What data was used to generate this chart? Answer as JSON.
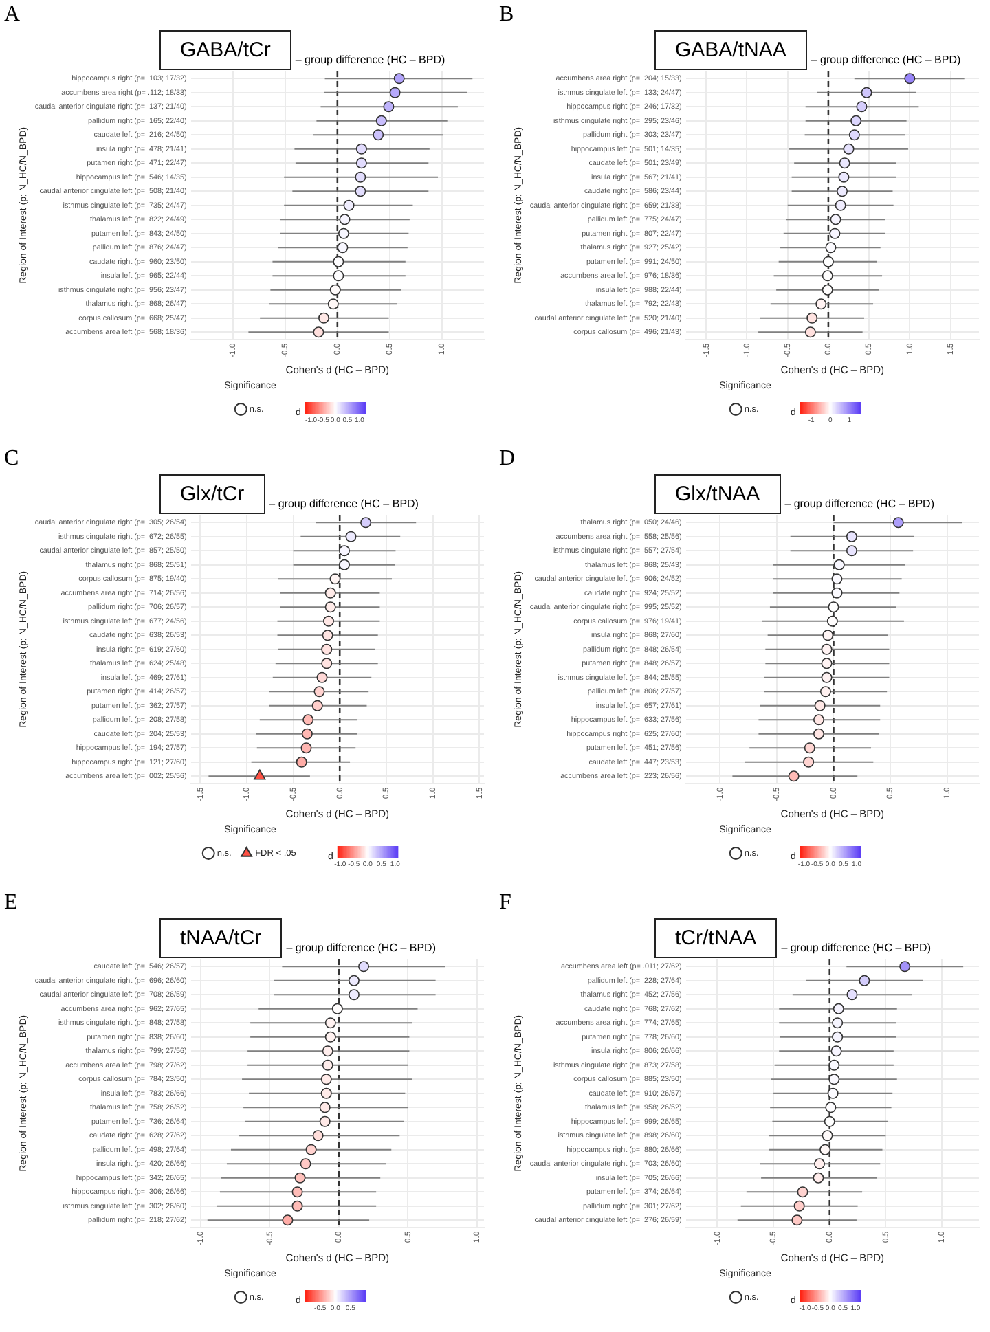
{
  "chart_data": [
    {
      "type": "scatter",
      "title": "GABA/tCr",
      "subtitle": "– group difference (HC – BPD)",
      "xlabel": "Cohen's d (HC – BPD)",
      "ylabel": "Region of Interest (p; N_HC/N_BPD)",
      "annotations": [
        "A"
      ],
      "orientation": "horizontal",
      "grid": true,
      "legend": "bottom",
      "legend_title": "Significance",
      "clabel": "d",
      "clim": [
        -1.25,
        1.25
      ],
      "cticks": [
        {
          "value": -1,
          "label": "-1.0"
        },
        {
          "value": -0.5,
          "label": "-0.5"
        },
        {
          "value": 0,
          "label": "0.0"
        },
        {
          "value": 0.5,
          "label": "0.5"
        },
        {
          "value": 1,
          "label": "1.0"
        }
      ],
      "categories": [
        "hippocampus right (p= .103; 17/32)",
        "accumbens area right (p= .112; 18/33)",
        "caudal anterior cingulate right (p= .137; 21/40)",
        "pallidum right (p= .165; 22/40)",
        "caudate left (p= .216; 24/50)",
        "insula right (p= .478; 21/41)",
        "putamen right (p= .471; 22/47)",
        "hippocampus left (p= .546; 14/35)",
        "caudal anterior cingulate left (p= .508; 21/40)",
        "isthmus cingulate left (p= .735; 24/47)",
        "thalamus left (p= .822; 24/49)",
        "putamen left (p= .843; 24/50)",
        "pallidum left (p= .876; 24/47)",
        "caudate right (p= .960; 23/50)",
        "insula left (p= .965; 22/44)",
        "isthmus cingulate right (p= .956; 23/47)",
        "thalamus right (p= .868; 26/47)",
        "corpus callosum (p= .668; 25/47)",
        "accumbens area left (p= .568; 18/36)"
      ],
      "series": [
        {
          "name": "n.s.",
          "marker": "circle",
          "values": [
            0.59,
            0.55,
            0.49,
            0.42,
            0.39,
            0.23,
            0.23,
            0.22,
            0.22,
            0.11,
            0.07,
            0.06,
            0.05,
            0.01,
            0.01,
            -0.02,
            -0.04,
            -0.13,
            -0.18
          ],
          "cvalues": [
            0.59,
            0.55,
            0.49,
            0.42,
            0.39,
            0.23,
            0.23,
            0.22,
            0.22,
            0.11,
            0.07,
            0.06,
            0.05,
            0.01,
            0.01,
            -0.02,
            -0.04,
            -0.13,
            -0.18
          ],
          "errors": [
            [
              -0.12,
              1.29
            ],
            [
              -0.13,
              1.24
            ],
            [
              -0.16,
              1.15
            ],
            [
              -0.2,
              1.05
            ],
            [
              -0.23,
              1.01
            ],
            [
              -0.41,
              0.88
            ],
            [
              -0.4,
              0.87
            ],
            [
              -0.51,
              0.96
            ],
            [
              -0.43,
              0.87
            ],
            [
              -0.51,
              0.72
            ],
            [
              -0.55,
              0.69
            ],
            [
              -0.55,
              0.68
            ],
            [
              -0.57,
              0.67
            ],
            [
              -0.62,
              0.65
            ],
            [
              -0.62,
              0.65
            ],
            [
              -0.64,
              0.61
            ],
            [
              -0.65,
              0.57
            ],
            [
              -0.74,
              0.49
            ],
            [
              -0.85,
              0.49
            ]
          ]
        }
      ],
      "xlim": [
        -1.4,
        1.4
      ],
      "xticks": [
        {
          "value": -1,
          "label": "-1.0"
        },
        {
          "value": -0.5,
          "label": "-0.5"
        },
        {
          "value": 0,
          "label": "0.0"
        },
        {
          "value": 0.5,
          "label": "0.5"
        },
        {
          "value": 1,
          "label": "1.0"
        }
      ],
      "ref_lines": [
        {
          "axis": "x",
          "value": 0,
          "line_style": "dashed"
        }
      ]
    },
    {
      "type": "scatter",
      "title": "GABA/tNAA",
      "subtitle": "– group difference (HC – BPD)",
      "xlabel": "Cohen's d (HC – BPD)",
      "ylabel": "Region of Interest (p; N_HC/N_BPD)",
      "annotations": [
        "B"
      ],
      "orientation": "horizontal",
      "grid": true,
      "legend": "bottom",
      "legend_title": "Significance",
      "clabel": "d",
      "clim": [
        -1.6,
        1.6
      ],
      "cticks": [
        -1,
        0,
        1
      ],
      "categories": [
        "accumbens area right (p= .204; 15/33)",
        "isthmus cingulate left (p= .133; 24/47)",
        "hippocampus right (p= .246; 17/32)",
        "isthmus cingulate right (p= .295; 23/46)",
        "pallidum right (p= .303; 23/47)",
        "hippocampus left (p= .501; 14/35)",
        "caudate left (p= .501; 23/49)",
        "insula right (p= .567; 21/41)",
        "caudate right (p= .586; 23/44)",
        "caudal anterior cingulate right (p= .659; 21/38)",
        "pallidum left (p= .775; 24/47)",
        "putamen right (p= .807; 22/47)",
        "thalamus right (p= .927; 25/42)",
        "putamen left (p= .991; 24/50)",
        "accumbens area left (p= .976; 18/36)",
        "insula left (p= .988; 22/44)",
        "thalamus left (p= .792; 22/43)",
        "caudal anterior cingulate left (p= .520; 21/40)",
        "corpus callosum (p= .496; 21/43)"
      ],
      "series": [
        {
          "name": "n.s.",
          "marker": "circle",
          "values": [
            1.0,
            0.47,
            0.41,
            0.34,
            0.32,
            0.25,
            0.2,
            0.19,
            0.17,
            0.15,
            0.09,
            0.08,
            0.03,
            0.0,
            -0.01,
            -0.01,
            -0.09,
            -0.2,
            -0.22
          ],
          "cvalues": [
            1.0,
            0.47,
            0.41,
            0.34,
            0.32,
            0.25,
            0.2,
            0.19,
            0.17,
            0.15,
            0.09,
            0.08,
            0.03,
            0.0,
            -0.01,
            -0.01,
            -0.09,
            -0.2,
            -0.22
          ],
          "errors": [
            [
              0.32,
              1.67
            ],
            [
              -0.14,
              1.08
            ],
            [
              -0.28,
              1.11
            ],
            [
              -0.28,
              0.96
            ],
            [
              -0.29,
              0.94
            ],
            [
              -0.48,
              0.98
            ],
            [
              -0.42,
              0.83
            ],
            [
              -0.45,
              0.83
            ],
            [
              -0.45,
              0.79
            ],
            [
              -0.5,
              0.8
            ],
            [
              -0.52,
              0.7
            ],
            [
              -0.55,
              0.7
            ],
            [
              -0.59,
              0.64
            ],
            [
              -0.61,
              0.6
            ],
            [
              -0.67,
              0.66
            ],
            [
              -0.64,
              0.62
            ],
            [
              -0.71,
              0.55
            ],
            [
              -0.84,
              0.44
            ],
            [
              -0.86,
              0.42
            ]
          ]
        }
      ],
      "xlim": [
        -1.75,
        1.85
      ],
      "xticks": [
        {
          "value": -1.5,
          "label": "-1.5"
        },
        {
          "value": -1,
          "label": "-1.0"
        },
        {
          "value": -0.5,
          "label": "-0.5"
        },
        {
          "value": 0,
          "label": "0.0"
        },
        {
          "value": 0.5,
          "label": "0.5"
        },
        {
          "value": 1,
          "label": "1.0"
        },
        {
          "value": 1.5,
          "label": "1.5"
        }
      ],
      "ref_lines": [
        {
          "axis": "x",
          "value": 0,
          "line_style": "dashed"
        }
      ]
    },
    {
      "type": "scatter",
      "title": "Glx/tCr",
      "subtitle": "– group difference (HC – BPD)",
      "xlabel": "Cohen's d (HC – BPD)",
      "ylabel": "Region of Interest (p; N_HC/N_BPD)",
      "annotations": [
        "C"
      ],
      "orientation": "horizontal",
      "grid": true,
      "legend": "bottom",
      "legend_title": "Significance",
      "clabel": "d",
      "clim": [
        -1.1,
        1.1
      ],
      "cticks": [
        {
          "value": -1,
          "label": "-1.0"
        },
        {
          "value": -0.5,
          "label": "-0.5"
        },
        {
          "value": 0,
          "label": "0.0"
        },
        {
          "value": 0.5,
          "label": "0.5"
        },
        {
          "value": 1,
          "label": "1.0"
        }
      ],
      "categories": [
        "caudal anterior cingulate right (p= .305; 26/54)",
        "isthmus cingulate right (p= .672; 26/55)",
        "caudal anterior cingulate left (p= .857; 25/50)",
        "thalamus right (p= .868; 25/51)",
        "corpus callosum (p= .875; 19/40)",
        "accumbens area right (p= .714; 26/56)",
        "pallidum right (p= .706; 26/57)",
        "isthmus cingulate left (p= .677; 24/56)",
        "caudate right (p= .638; 26/53)",
        "insula right (p= .619; 27/60)",
        "thalamus left (p= .624; 25/48)",
        "insula left (p= .469; 27/61)",
        "putamen right (p= .414; 26/57)",
        "putamen left (p= .362; 27/57)",
        "pallidum left (p= .208; 27/58)",
        "caudate left (p= .204; 25/53)",
        "hippocampus left (p= .194; 27/57)",
        "hippocampus right (p= .121; 27/60)",
        "accumbens area left (p= .002; 25/56)"
      ],
      "series": [
        {
          "name": "n.s.",
          "marker": "circle",
          "values": [
            0.28,
            0.12,
            0.05,
            0.05,
            -0.05,
            -0.1,
            -0.1,
            -0.12,
            -0.13,
            -0.14,
            -0.14,
            -0.19,
            -0.22,
            -0.24,
            -0.34,
            -0.35,
            -0.36,
            -0.41,
            null
          ],
          "colors": [
            "#d5cdfc",
            "#edeafe",
            "#f8f6ff",
            "#f8f6ff",
            "#fff5f4",
            "#ffebe9",
            "#ffebe9",
            "#ffe7e5",
            "#ffe5e3",
            "#ffe3e1",
            "#ffe3e1",
            "#ffd8d6",
            "#ffd2cf",
            "#ffcecb",
            "#ffbab5",
            "#ffb8b3",
            "#ffb6b1",
            "#ffaca6",
            null
          ],
          "errors": [
            [
              -0.26,
              0.82
            ],
            [
              -0.42,
              0.65
            ],
            [
              -0.5,
              0.6
            ],
            [
              -0.5,
              0.59
            ],
            [
              -0.66,
              0.56
            ],
            [
              -0.64,
              0.43
            ],
            [
              -0.64,
              0.43
            ],
            [
              -0.67,
              0.43
            ],
            [
              -0.67,
              0.41
            ],
            [
              -0.66,
              0.38
            ],
            [
              -0.69,
              0.41
            ],
            [
              -0.72,
              0.34
            ],
            [
              -0.76,
              0.31
            ],
            [
              -0.76,
              0.29
            ],
            [
              -0.86,
              0.19
            ],
            [
              -0.9,
              0.19
            ],
            [
              -0.89,
              0.17
            ],
            [
              -0.95,
              0.11
            ],
            null
          ]
        },
        {
          "name": "FDR < .05",
          "marker": "triangle",
          "values": [
            null,
            null,
            null,
            null,
            null,
            null,
            null,
            null,
            null,
            null,
            null,
            null,
            null,
            null,
            null,
            null,
            null,
            null,
            -0.86
          ],
          "colors": [
            null,
            null,
            null,
            null,
            null,
            null,
            null,
            null,
            null,
            null,
            null,
            null,
            null,
            null,
            null,
            null,
            null,
            null,
            "#ff5144"
          ],
          "errors": [
            null,
            null,
            null,
            null,
            null,
            null,
            null,
            null,
            null,
            null,
            null,
            null,
            null,
            null,
            null,
            null,
            null,
            null,
            [
              -1.41,
              -0.32
            ]
          ]
        }
      ],
      "xlim": [
        -1.6,
        1.55
      ],
      "xticks": [
        {
          "value": -1.5,
          "label": "-1.5"
        },
        {
          "value": -1,
          "label": "-1.0"
        },
        {
          "value": -0.5,
          "label": "-0.5"
        },
        {
          "value": 0,
          "label": "0.0"
        },
        {
          "value": 0.5,
          "label": "0.5"
        },
        {
          "value": 1,
          "label": "1.0"
        },
        {
          "value": 1.5,
          "label": "1.5"
        }
      ],
      "ref_lines": [
        {
          "axis": "x",
          "value": 0,
          "line_style": "dashed"
        }
      ]
    },
    {
      "type": "scatter",
      "title": "Glx/tNAA",
      "subtitle": "– group difference (HC – BPD)",
      "xlabel": "Cohen's d (HC – BPD)",
      "ylabel": "Region of Interest (p; N_HC/N_BPD)",
      "annotations": [
        "D"
      ],
      "orientation": "horizontal",
      "grid": true,
      "legend": "bottom",
      "legend_title": "Significance",
      "clabel": "d",
      "clim": [
        -1.15,
        1.15
      ],
      "cticks": [
        {
          "value": -1,
          "label": "-1.0"
        },
        {
          "value": -0.5,
          "label": "-0.5"
        },
        {
          "value": 0,
          "label": "0.0"
        },
        {
          "value": 0.5,
          "label": "0.5"
        },
        {
          "value": 1,
          "label": "1.0"
        }
      ],
      "categories": [
        "thalamus right (p= .050; 24/46)",
        "accumbens area right (p= .558; 25/56)",
        "isthmus cingulate right (p= .557; 27/54)",
        "thalamus left (p= .868; 25/43)",
        "caudal anterior cingulate left (p= .906; 24/52)",
        "caudate right (p= .924; 25/52)",
        "caudal anterior cingulate right (p= .995; 25/52)",
        "corpus callosum (p= .976; 19/41)",
        "insula right (p= .868; 27/60)",
        "pallidum right (p= .848; 26/54)",
        "putamen right (p= .848; 26/57)",
        "isthmus cingulate left (p= .844; 25/55)",
        "pallidum left (p= .806; 27/57)",
        "insula left (p= .657; 27/61)",
        "hippocampus left (p= .633; 27/56)",
        "hippocampus right (p= .625; 27/60)",
        "putamen left (p= .451; 27/56)",
        "caudate left (p= .447; 23/53)",
        "accumbens area left (p= .223; 26/56)"
      ],
      "series": [
        {
          "name": "n.s.",
          "marker": "circle",
          "values": [
            0.57,
            0.16,
            0.16,
            0.05,
            0.03,
            0.03,
            0.0,
            -0.01,
            -0.05,
            -0.06,
            -0.06,
            -0.06,
            -0.07,
            -0.12,
            -0.13,
            -0.13,
            -0.21,
            -0.22,
            -0.35
          ],
          "cvalues": [
            0.57,
            0.16,
            0.16,
            0.05,
            0.03,
            0.03,
            0.0,
            -0.01,
            -0.05,
            -0.06,
            -0.06,
            -0.06,
            -0.07,
            -0.12,
            -0.13,
            -0.13,
            -0.21,
            -0.22,
            -0.35
          ],
          "errors": [
            [
              0.0,
              1.13
            ],
            [
              -0.38,
              0.71
            ],
            [
              -0.38,
              0.7
            ],
            [
              -0.53,
              0.63
            ],
            [
              -0.53,
              0.6
            ],
            [
              -0.53,
              0.58
            ],
            [
              -0.56,
              0.55
            ],
            [
              -0.63,
              0.62
            ],
            [
              -0.58,
              0.48
            ],
            [
              -0.6,
              0.49
            ],
            [
              -0.6,
              0.49
            ],
            [
              -0.61,
              0.49
            ],
            [
              -0.61,
              0.47
            ],
            [
              -0.65,
              0.41
            ],
            [
              -0.66,
              0.41
            ],
            [
              -0.66,
              0.4
            ],
            [
              -0.74,
              0.33
            ],
            [
              -0.78,
              0.35
            ],
            [
              -0.89,
              0.21
            ]
          ]
        }
      ],
      "xlim": [
        -1.3,
        1.28
      ],
      "xticks": [
        {
          "value": -1,
          "label": "-1.0"
        },
        {
          "value": -0.5,
          "label": "-0.5"
        },
        {
          "value": 0,
          "label": "0.0"
        },
        {
          "value": 0.5,
          "label": "0.5"
        },
        {
          "value": 1,
          "label": "1.0"
        }
      ],
      "ref_lines": [
        {
          "axis": "x",
          "value": 0,
          "line_style": "dashed"
        }
      ]
    },
    {
      "type": "scatter",
      "title": "tNAA/tCr",
      "subtitle": "– group difference (HC – BPD)",
      "xlabel": "Cohen's d (HC – BPD)",
      "ylabel": "Region of Interest (p; N_HC/N_BPD)",
      "annotations": [
        "E"
      ],
      "orientation": "horizontal",
      "grid": true,
      "legend": "bottom",
      "legend_title": "Significance",
      "clabel": "d",
      "clim": [
        -1,
        1
      ],
      "cticks": [
        {
          "value": -0.5,
          "label": "-0.5"
        },
        {
          "value": 0,
          "label": "0.0"
        },
        {
          "value": 0.5,
          "label": "0.5"
        }
      ],
      "categories": [
        "caudate left (p= .546; 26/57)",
        "caudal anterior cingulate right (p= .696; 26/60)",
        "caudal anterior cingulate left (p= .708; 26/59)",
        "accumbens area right (p= .962; 27/65)",
        "isthmus cingulate right (p= .848; 27/58)",
        "putamen right (p= .838; 26/60)",
        "thalamus right (p= .799; 27/56)",
        "accumbens area left (p= .798; 27/62)",
        "corpus callosum (p= .784; 23/50)",
        "insula left (p= .783; 26/66)",
        "thalamus left (p= .758; 26/52)",
        "putamen left (p= .736; 26/64)",
        "caudate right (p= .628; 27/62)",
        "pallidum left (p= .498; 27/64)",
        "insula right (p= .420; 26/66)",
        "hippocampus left (p= .342; 26/65)",
        "hippocampus right (p= .306; 26/66)",
        "isthmus cingulate left (p= .302; 26/60)",
        "pallidum right (p= .218; 27/62)"
      ],
      "series": [
        {
          "name": "n.s.",
          "marker": "circle",
          "values": [
            0.18,
            0.11,
            0.11,
            -0.01,
            -0.06,
            -0.06,
            -0.08,
            -0.08,
            -0.09,
            -0.09,
            -0.1,
            -0.1,
            -0.15,
            -0.2,
            -0.24,
            -0.28,
            -0.3,
            -0.3,
            -0.37
          ],
          "cvalues": [
            0.18,
            0.11,
            0.11,
            -0.01,
            -0.06,
            -0.06,
            -0.08,
            -0.08,
            -0.09,
            -0.09,
            -0.1,
            -0.1,
            -0.15,
            -0.2,
            -0.24,
            -0.28,
            -0.3,
            -0.3,
            -0.37
          ],
          "errors": [
            [
              -0.41,
              0.77
            ],
            [
              -0.47,
              0.7
            ],
            [
              -0.47,
              0.7
            ],
            [
              -0.58,
              0.57
            ],
            [
              -0.64,
              0.53
            ],
            [
              -0.64,
              0.51
            ],
            [
              -0.66,
              0.51
            ],
            [
              -0.66,
              0.5
            ],
            [
              -0.7,
              0.53
            ],
            [
              -0.65,
              0.48
            ],
            [
              -0.69,
              0.5
            ],
            [
              -0.68,
              0.47
            ],
            [
              -0.72,
              0.44
            ],
            [
              -0.78,
              0.38
            ],
            [
              -0.81,
              0.34
            ],
            [
              -0.85,
              0.3
            ],
            [
              -0.86,
              0.27
            ],
            [
              -0.88,
              0.27
            ],
            [
              -0.95,
              0.22
            ]
          ]
        }
      ],
      "xlim": [
        -1.07,
        1.05
      ],
      "xticks": [
        {
          "value": -1,
          "label": "-1.0"
        },
        {
          "value": -0.5,
          "label": "-0.5"
        },
        {
          "value": 0,
          "label": "0.0"
        },
        {
          "value": 0.5,
          "label": "0.5"
        },
        {
          "value": 1,
          "label": "1.0"
        }
      ],
      "ref_lines": [
        {
          "axis": "x",
          "value": 0,
          "line_style": "dashed"
        }
      ]
    },
    {
      "type": "scatter",
      "title": "tCr/tNAA",
      "subtitle": "– group difference (HC – BPD)",
      "xlabel": "Cohen's d (HC – BPD)",
      "ylabel": "Region of Interest (p; N_HC/N_BPD)",
      "annotations": [
        "F"
      ],
      "orientation": "horizontal",
      "grid": true,
      "legend": "bottom",
      "legend_title": "Significance",
      "clabel": "d",
      "clim": [
        -1.2,
        1.2
      ],
      "cticks": [
        {
          "value": -1,
          "label": "-1.0"
        },
        {
          "value": -0.5,
          "label": "-0.5"
        },
        {
          "value": 0,
          "label": "0.0"
        },
        {
          "value": 0.5,
          "label": "0.5"
        },
        {
          "value": 1,
          "label": "1.0"
        }
      ],
      "categories": [
        "accumbens area left (p= .011; 27/62)",
        "pallidum left (p= .228; 27/64)",
        "thalamus right (p= .452; 27/56)",
        "caudate right (p= .768; 27/62)",
        "accumbens area right (p= .774; 27/65)",
        "putamen right (p= .778; 26/60)",
        "insula right (p= .806; 26/66)",
        "isthmus cingulate right (p= .873; 27/58)",
        "corpus callosum (p= .885; 23/50)",
        "caudate left (p= .910; 26/57)",
        "thalamus left (p= .958; 26/52)",
        "hippocampus left (p= .999; 26/65)",
        "isthmus cingulate left (p= .898; 26/60)",
        "hippocampus right (p= .880; 26/66)",
        "caudal anterior cingulate right (p= .703; 26/60)",
        "insula left (p= .705; 26/66)",
        "putamen left (p= .374; 26/64)",
        "pallidum right (p= .301; 27/62)",
        "caudal anterior cingulate left (p= .276; 26/59)"
      ],
      "series": [
        {
          "name": "n.s.",
          "marker": "circle",
          "values": [
            0.67,
            0.31,
            0.2,
            0.08,
            0.07,
            0.07,
            0.06,
            0.04,
            0.04,
            0.03,
            0.01,
            0.0,
            -0.02,
            -0.04,
            -0.09,
            -0.1,
            -0.24,
            -0.27,
            -0.29
          ],
          "cvalues": [
            0.67,
            0.31,
            0.2,
            0.08,
            0.07,
            0.07,
            0.06,
            0.04,
            0.04,
            0.03,
            0.01,
            0.0,
            -0.02,
            -0.04,
            -0.09,
            -0.1,
            -0.24,
            -0.27,
            -0.29
          ],
          "errors": [
            [
              0.15,
              1.19
            ],
            [
              -0.21,
              0.83
            ],
            [
              -0.33,
              0.73
            ],
            [
              -0.45,
              0.6
            ],
            [
              -0.45,
              0.59
            ],
            [
              -0.44,
              0.59
            ],
            [
              -0.45,
              0.57
            ],
            [
              -0.49,
              0.57
            ],
            [
              -0.52,
              0.6
            ],
            [
              -0.5,
              0.56
            ],
            [
              -0.53,
              0.55
            ],
            [
              -0.51,
              0.52
            ],
            [
              -0.54,
              0.5
            ],
            [
              -0.54,
              0.47
            ],
            [
              -0.62,
              0.45
            ],
            [
              -0.61,
              0.42
            ],
            [
              -0.74,
              0.29
            ],
            [
              -0.79,
              0.25
            ],
            [
              -0.82,
              0.24
            ]
          ]
        }
      ],
      "xlim": [
        -1.28,
        1.33
      ],
      "xticks": [
        {
          "value": -1,
          "label": "-1.0"
        },
        {
          "value": -0.5,
          "label": "-0.5"
        },
        {
          "value": 0,
          "label": "0.0"
        },
        {
          "value": 0.5,
          "label": "0.5"
        },
        {
          "value": 1,
          "label": "1.0"
        }
      ],
      "ref_lines": [
        {
          "axis": "x",
          "value": 0,
          "line_style": "dashed"
        }
      ]
    }
  ]
}
